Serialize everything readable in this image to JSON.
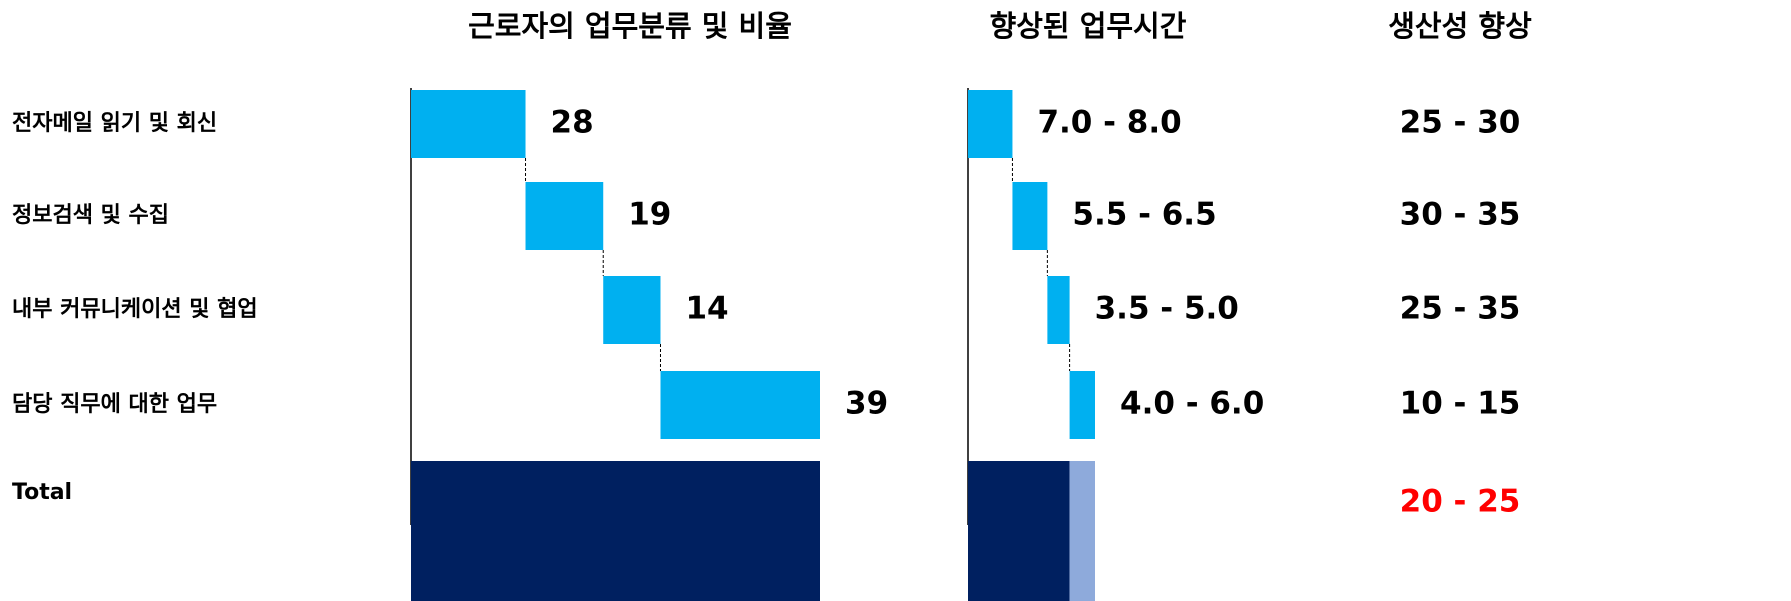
{
  "chart_data": [
    {
      "type": "waterfall",
      "title": "근로자의 업무분류 및 비율",
      "categories": [
        "전자메일 읽기 및 회신",
        "정보검색 및 수집",
        "내부 커뮤니케이션 및 협업",
        "담당 직무에 대한 업무"
      ],
      "total_label": "Total",
      "values": [
        28,
        19,
        14,
        39
      ],
      "color": "#00b0f0",
      "total_color": "#002060",
      "xlim": [
        0,
        100
      ]
    },
    {
      "type": "range-waterfall",
      "title": "향상된 업무시간",
      "values_low": [
        7.0,
        5.5,
        3.5,
        4.0
      ],
      "values_high": [
        8.0,
        6.5,
        5.0,
        6.0
      ],
      "value_labels": [
        "7.0 - 8.0",
        "5.5 - 6.5",
        "3.5 - 5.0",
        "4.0 - 6.0"
      ],
      "color": "#00b0f0",
      "total_color": "#002060",
      "total_last_color": "#8eaadb",
      "xlim": [
        0,
        20
      ]
    }
  ],
  "productivity": {
    "title": "생산성 향상",
    "values": [
      "25 - 30",
      "30 - 35",
      "25 - 35",
      "10 - 15"
    ],
    "total": "20 - 25",
    "total_color": "#ff0000"
  }
}
